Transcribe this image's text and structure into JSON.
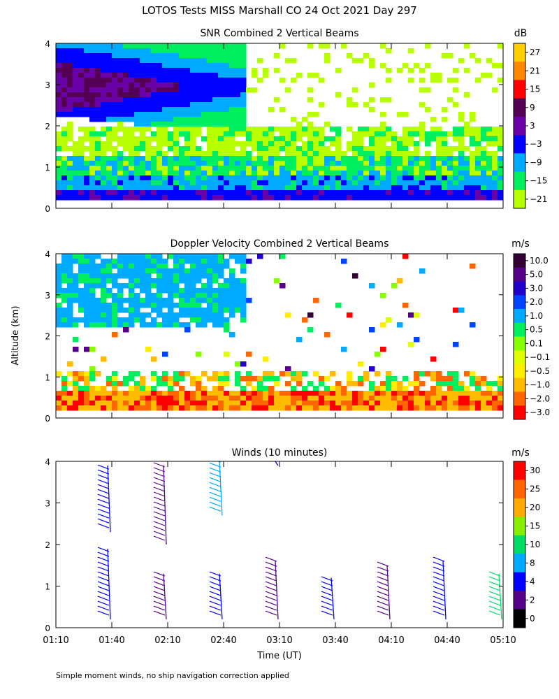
{
  "page_title": "LOTOS Tests MISS Marshall CO  24 Oct 2021 Day 297",
  "y_axis_label": "Altitude (km)",
  "x_axis_label": "Time (UT)",
  "footnote": "Simple moment winds, no ship navigation correction applied",
  "time_ticks": [
    "01:10",
    "01:40",
    "02:10",
    "02:40",
    "03:10",
    "03:40",
    "04:10",
    "04:40",
    "05:10"
  ],
  "altitude_ticks": [
    "0",
    "1",
    "2",
    "3",
    "4"
  ],
  "chart_data": [
    {
      "type": "heatmap",
      "title": "SNR Combined 2 Vertical Beams",
      "unit": "dB",
      "xlabel": "Time (UT)",
      "ylabel": "Altitude (km)",
      "ylim": [
        0,
        4
      ],
      "x_range": [
        "01:10",
        "05:10"
      ],
      "colorbar": {
        "labels": [
          "27",
          "21",
          "15",
          "9",
          "3",
          "−3",
          "−9",
          "−15",
          "−21"
        ],
        "colors": [
          "#ffd000",
          "#ff8800",
          "#ff0000",
          "#550055",
          "#6a00a8",
          "#0000ff",
          "#00aaff",
          "#00ee60",
          "#b8ff00"
        ]
      },
      "features": [
        {
          "kind": "strong_layer",
          "time_from_min": 0,
          "time_to_min": 90,
          "alt_from_km": 2.3,
          "alt_to_km": 4.0,
          "level_db": 3
        },
        {
          "kind": "boundary_layer",
          "time_from_min": 0,
          "time_to_min": 240,
          "alt_from_km": 0.3,
          "alt_to_km": 0.8,
          "level_db": -3
        },
        {
          "kind": "weak_echo",
          "time_from_min": 0,
          "time_to_min": 240,
          "alt_from_km": 0.8,
          "alt_to_km": 2.0,
          "level_db": -18
        }
      ]
    },
    {
      "type": "heatmap",
      "title": "Doppler Velocity Combined 2 Vertical Beams",
      "unit": "m/s",
      "xlabel": "Time (UT)",
      "ylabel": "Altitude (km)",
      "ylim": [
        0,
        4
      ],
      "x_range": [
        "01:10",
        "05:10"
      ],
      "colorbar": {
        "labels": [
          "10.0",
          "5.0",
          "3.0",
          "2.0",
          "1.0",
          "0.5",
          "0.1",
          "−0.1",
          "−0.5",
          "−1.0",
          "−2.0",
          "−3.0"
        ],
        "colors": [
          "#330033",
          "#550088",
          "#2200cc",
          "#0044ff",
          "#00aaff",
          "#00ee60",
          "#88ff00",
          "#ddff00",
          "#ffee00",
          "#ffbb00",
          "#ff6600",
          "#ff0000"
        ]
      },
      "features": [
        {
          "kind": "updraft_region",
          "time_from_min": 0,
          "time_to_min": 90,
          "alt_from_km": 2.3,
          "alt_to_km": 4.0,
          "velocity_ms": 1.0
        },
        {
          "kind": "downdraft_layer",
          "time_from_min": 0,
          "time_to_min": 240,
          "alt_from_km": 0.3,
          "alt_to_km": 1.2,
          "velocity_ms": -1.0
        }
      ]
    },
    {
      "type": "scatter",
      "title": "Winds (10 minutes)",
      "unit": "m/s",
      "xlabel": "Time (UT)",
      "ylabel": "Altitude (km)",
      "ylim": [
        0,
        4
      ],
      "colorbar": {
        "labels": [
          "30",
          "25",
          "20",
          "15",
          "10",
          "8",
          "4",
          "2",
          "0"
        ],
        "colors": [
          "#ff0000",
          "#ff6600",
          "#ffaa00",
          "#88ee00",
          "#00dd66",
          "#00aaff",
          "#0000ff",
          "#550088",
          "#000000"
        ]
      },
      "profiles": [
        {
          "time": "01:40",
          "segments": [
            {
              "alt_from_km": 2.3,
              "alt_to_km": 3.9,
              "speed_ms": 9
            },
            {
              "alt_from_km": 0.2,
              "alt_to_km": 1.9,
              "speed_ms": 6
            }
          ]
        },
        {
          "time": "02:10",
          "segments": [
            {
              "alt_from_km": 2.0,
              "alt_to_km": 3.9,
              "speed_ms": 4
            },
            {
              "alt_from_km": 0.2,
              "alt_to_km": 1.3,
              "speed_ms": 4
            }
          ]
        },
        {
          "time": "02:40",
          "segments": [
            {
              "alt_from_km": 2.7,
              "alt_to_km": 4.0,
              "speed_ms": 12
            },
            {
              "alt_from_km": 0.2,
              "alt_to_km": 1.3,
              "speed_ms": 8
            }
          ]
        },
        {
          "time": "03:10",
          "segments": [
            {
              "alt_from_km": 3.9,
              "alt_to_km": 4.0,
              "speed_ms": 8
            },
            {
              "alt_from_km": 0.2,
              "alt_to_km": 1.6,
              "speed_ms": 5
            }
          ]
        },
        {
          "time": "03:40",
          "segments": [
            {
              "alt_from_km": 0.2,
              "alt_to_km": 1.2,
              "speed_ms": 6
            }
          ]
        },
        {
          "time": "04:10",
          "segments": [
            {
              "alt_from_km": 0.2,
              "alt_to_km": 1.5,
              "speed_ms": 5
            }
          ]
        },
        {
          "time": "04:40",
          "segments": [
            {
              "alt_from_km": 0.2,
              "alt_to_km": 1.6,
              "speed_ms": 7
            }
          ]
        },
        {
          "time": "05:10",
          "segments": [
            {
              "alt_from_km": 0.2,
              "alt_to_km": 1.3,
              "speed_ms": 14
            }
          ]
        }
      ]
    }
  ]
}
